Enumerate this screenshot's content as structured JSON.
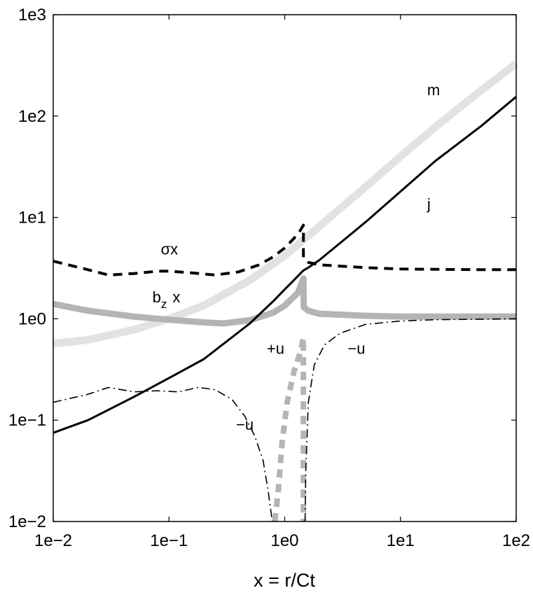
{
  "chart_data": {
    "type": "line",
    "xscale": "log",
    "yscale": "log",
    "xlim": [
      0.01,
      100
    ],
    "ylim": [
      0.01,
      1000
    ],
    "xlabel": "x = r/Ct",
    "x_ticks": [
      {
        "value": 0.01,
        "label": "1e−2"
      },
      {
        "value": 0.1,
        "label": "1e−1"
      },
      {
        "value": 1,
        "label": "1e0"
      },
      {
        "value": 10,
        "label": "1e1"
      },
      {
        "value": 100,
        "label": "1e2"
      }
    ],
    "y_ticks": [
      {
        "value": 0.01,
        "label": "1e−2"
      },
      {
        "value": 0.1,
        "label": "1e−1"
      },
      {
        "value": 1,
        "label": "1e0"
      },
      {
        "value": 10,
        "label": "1e1"
      },
      {
        "value": 100,
        "label": "1e2"
      },
      {
        "value": 1000,
        "label": "1e3"
      }
    ],
    "grid": false,
    "series": [
      {
        "name": "m",
        "style": "thick-light-gray",
        "color": "#e2e2e2",
        "points": [
          [
            0.01,
            0.57
          ],
          [
            0.02,
            0.62
          ],
          [
            0.05,
            0.78
          ],
          [
            0.1,
            1.0
          ],
          [
            0.2,
            1.35
          ],
          [
            0.5,
            2.4
          ],
          [
            1.0,
            4.2
          ],
          [
            1.5,
            6.2
          ],
          [
            2,
            8.2
          ],
          [
            5,
            20
          ],
          [
            10,
            40
          ],
          [
            20,
            78
          ],
          [
            50,
            180
          ],
          [
            100,
            330
          ]
        ]
      },
      {
        "name": "j",
        "style": "solid-black",
        "color": "#000000",
        "points": [
          [
            0.01,
            0.075
          ],
          [
            0.02,
            0.1
          ],
          [
            0.05,
            0.17
          ],
          [
            0.1,
            0.26
          ],
          [
            0.2,
            0.4
          ],
          [
            0.5,
            0.9
          ],
          [
            0.8,
            1.5
          ],
          [
            1.0,
            1.95
          ],
          [
            1.2,
            2.4
          ],
          [
            1.45,
            3.0
          ],
          [
            1.6,
            3.2
          ],
          [
            2,
            3.8
          ],
          [
            5,
            9
          ],
          [
            10,
            18
          ],
          [
            20,
            36
          ],
          [
            50,
            80
          ],
          [
            100,
            155
          ]
        ]
      },
      {
        "name": "σx",
        "style": "dashed-black",
        "color": "#000000",
        "points": [
          [
            0.01,
            3.7
          ],
          [
            0.02,
            3.05
          ],
          [
            0.03,
            2.7
          ],
          [
            0.05,
            2.8
          ],
          [
            0.08,
            2.95
          ],
          [
            0.1,
            2.95
          ],
          [
            0.15,
            2.85
          ],
          [
            0.25,
            2.7
          ],
          [
            0.4,
            2.9
          ],
          [
            0.6,
            3.4
          ],
          [
            0.8,
            4.1
          ],
          [
            1.0,
            5.0
          ],
          [
            1.2,
            6.2
          ],
          [
            1.35,
            7.3
          ],
          [
            1.45,
            8.4
          ],
          [
            1.45,
            4.0
          ],
          [
            1.6,
            3.6
          ],
          [
            2,
            3.4
          ],
          [
            5,
            3.2
          ],
          [
            10,
            3.1
          ],
          [
            50,
            3.05
          ],
          [
            100,
            3.05
          ]
        ]
      },
      {
        "name": "b_z x",
        "style": "thick-mid-gray",
        "color": "#b4b4b4",
        "points": [
          [
            0.01,
            1.4
          ],
          [
            0.02,
            1.2
          ],
          [
            0.05,
            1.05
          ],
          [
            0.1,
            0.98
          ],
          [
            0.2,
            0.92
          ],
          [
            0.3,
            0.9
          ],
          [
            0.5,
            0.97
          ],
          [
            0.8,
            1.15
          ],
          [
            1.0,
            1.35
          ],
          [
            1.3,
            1.8
          ],
          [
            1.45,
            2.5
          ],
          [
            1.46,
            1.3
          ],
          [
            1.6,
            1.2
          ],
          [
            2,
            1.12
          ],
          [
            5,
            1.07
          ],
          [
            10,
            1.05
          ],
          [
            100,
            1.05
          ]
        ]
      },
      {
        "name": "−u",
        "style": "dash-dot-black",
        "color": "#000000",
        "points": [
          [
            0.01,
            0.15
          ],
          [
            0.02,
            0.18
          ],
          [
            0.03,
            0.21
          ],
          [
            0.05,
            0.19
          ],
          [
            0.08,
            0.195
          ],
          [
            0.12,
            0.19
          ],
          [
            0.18,
            0.21
          ],
          [
            0.25,
            0.2
          ],
          [
            0.35,
            0.16
          ],
          [
            0.45,
            0.11
          ],
          [
            0.55,
            0.07
          ],
          [
            0.65,
            0.04
          ],
          [
            0.72,
            0.02
          ],
          [
            0.78,
            0.01
          ]
        ]
      },
      {
        "name": "−u",
        "style": "dash-dot-black",
        "color": "#000000",
        "points": [
          [
            1.5,
            0.01
          ],
          [
            1.52,
            0.03
          ],
          [
            1.6,
            0.15
          ],
          [
            1.8,
            0.35
          ],
          [
            2.2,
            0.55
          ],
          [
            3,
            0.72
          ],
          [
            5,
            0.88
          ],
          [
            10,
            0.95
          ],
          [
            20,
            0.98
          ],
          [
            100,
            1.0
          ]
        ]
      },
      {
        "name": "+u",
        "style": "thick-dashed-gray",
        "color": "#b4b4b4",
        "points": [
          [
            0.82,
            0.01
          ],
          [
            0.88,
            0.02
          ],
          [
            0.95,
            0.06
          ],
          [
            1.05,
            0.15
          ],
          [
            1.2,
            0.3
          ],
          [
            1.35,
            0.45
          ],
          [
            1.45,
            0.65
          ],
          [
            1.45,
            0.01
          ]
        ]
      }
    ],
    "annotations": [
      {
        "id": "m",
        "text": "m",
        "x": 17,
        "y": 160
      },
      {
        "id": "j",
        "text": "j",
        "x": 17,
        "y": 12
      },
      {
        "id": "sigma",
        "text": "σx",
        "x": 0.085,
        "y": 4.3
      },
      {
        "id": "bz",
        "text": "b",
        "sub": "z",
        "suffix": "x",
        "x": 0.072,
        "y": 1.45
      },
      {
        "id": "plus-u",
        "text": "+u",
        "x": 0.7,
        "y": 0.45
      },
      {
        "id": "minus-u-right",
        "text": "−u",
        "x": 3.5,
        "y": 0.45
      },
      {
        "id": "minus-u-left",
        "text": "−u",
        "x": 0.38,
        "y": 0.08
      }
    ]
  }
}
